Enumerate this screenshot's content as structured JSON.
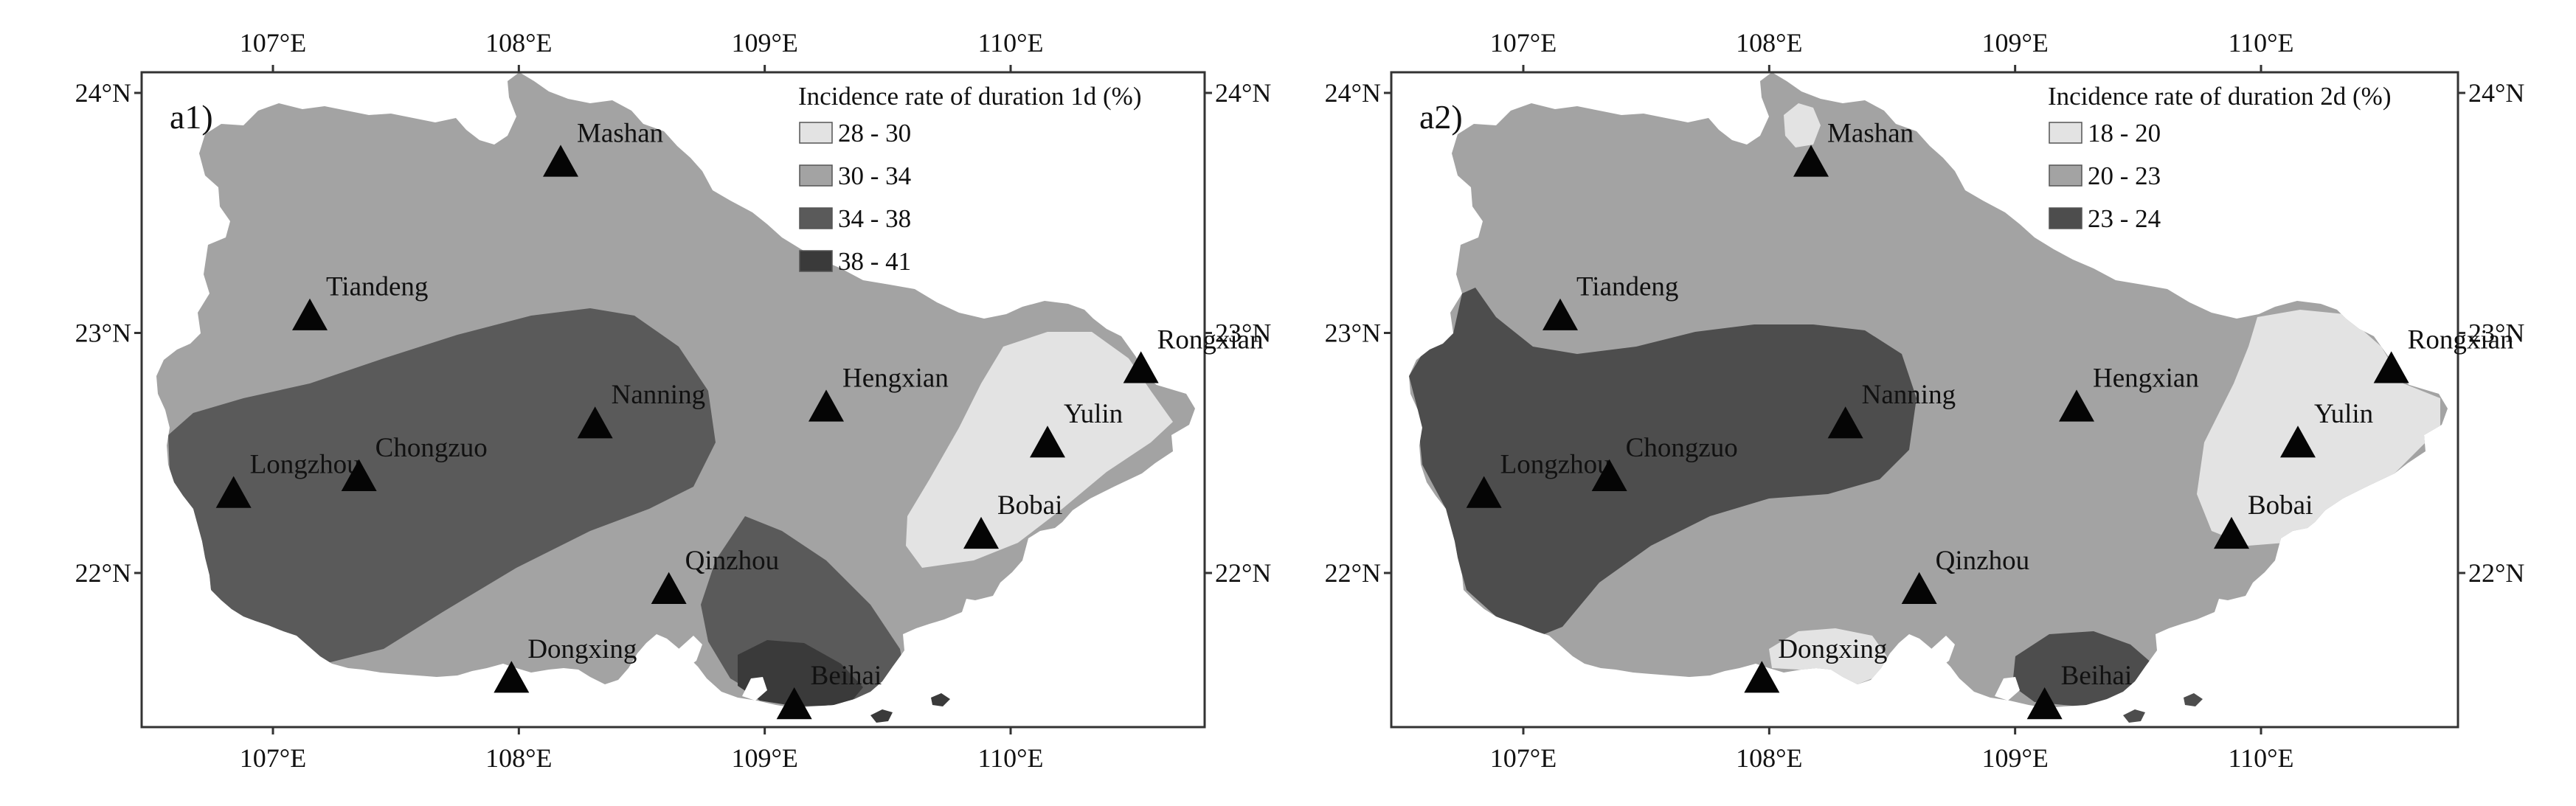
{
  "colors": {
    "land": "#a3a3a3",
    "frame": "#333333",
    "marker": "#050505",
    "water": "#ffffff"
  },
  "axes": {
    "x_ticks": [
      {
        "lon": 107,
        "label": "107°E"
      },
      {
        "lon": 108,
        "label": "108°E"
      },
      {
        "lon": 109,
        "label": "109°E"
      },
      {
        "lon": 110,
        "label": "110°E"
      }
    ],
    "y_ticks": [
      {
        "lat": 24,
        "label": "24°N"
      },
      {
        "lat": 23,
        "label": "23°N"
      },
      {
        "lat": 22,
        "label": "22°N"
      }
    ],
    "lon_range": [
      106.5,
      111.0
    ],
    "lat_range": [
      21.4,
      24.1
    ]
  },
  "stations": [
    {
      "name": "Mashan",
      "lon": 108.17,
      "lat": 23.71
    },
    {
      "name": "Tiandeng",
      "lon": 107.15,
      "lat": 23.07
    },
    {
      "name": "Nanning",
      "lon": 108.31,
      "lat": 22.62
    },
    {
      "name": "Hengxian",
      "lon": 109.25,
      "lat": 22.69
    },
    {
      "name": "Rongxian",
      "lon": 110.53,
      "lat": 22.85
    },
    {
      "name": "Yulin",
      "lon": 110.15,
      "lat": 22.54
    },
    {
      "name": "Longzhou",
      "lon": 106.84,
      "lat": 22.33
    },
    {
      "name": "Chongzuo",
      "lon": 107.35,
      "lat": 22.4
    },
    {
      "name": "Bobai",
      "lon": 109.88,
      "lat": 22.16
    },
    {
      "name": "Qinzhou",
      "lon": 108.61,
      "lat": 21.93
    },
    {
      "name": "Dongxing",
      "lon": 107.97,
      "lat": 21.56
    },
    {
      "name": "Beihai",
      "lon": 109.12,
      "lat": 21.45
    }
  ],
  "panels": [
    {
      "id": "a1",
      "tag": "a1)",
      "legend_title": "Incidence rate of duration 1d (%)",
      "classes": [
        {
          "label": "28 - 30",
          "color": "#e3e3e3"
        },
        {
          "label": "30 - 34",
          "color": "#a3a3a3"
        },
        {
          "label": "34 - 38",
          "color": "#5a5a5a"
        },
        {
          "label": "38 - 41",
          "color": "#3a3a3a"
        }
      ]
    },
    {
      "id": "a2",
      "tag": "a2)",
      "legend_title": "Incidence rate of duration 2d (%)",
      "classes": [
        {
          "label": "18 - 20",
          "color": "#e3e3e3"
        },
        {
          "label": "20 - 23",
          "color": "#a3a3a3"
        },
        {
          "label": "23 - 24",
          "color": "#4d4d4d"
        }
      ]
    }
  ]
}
